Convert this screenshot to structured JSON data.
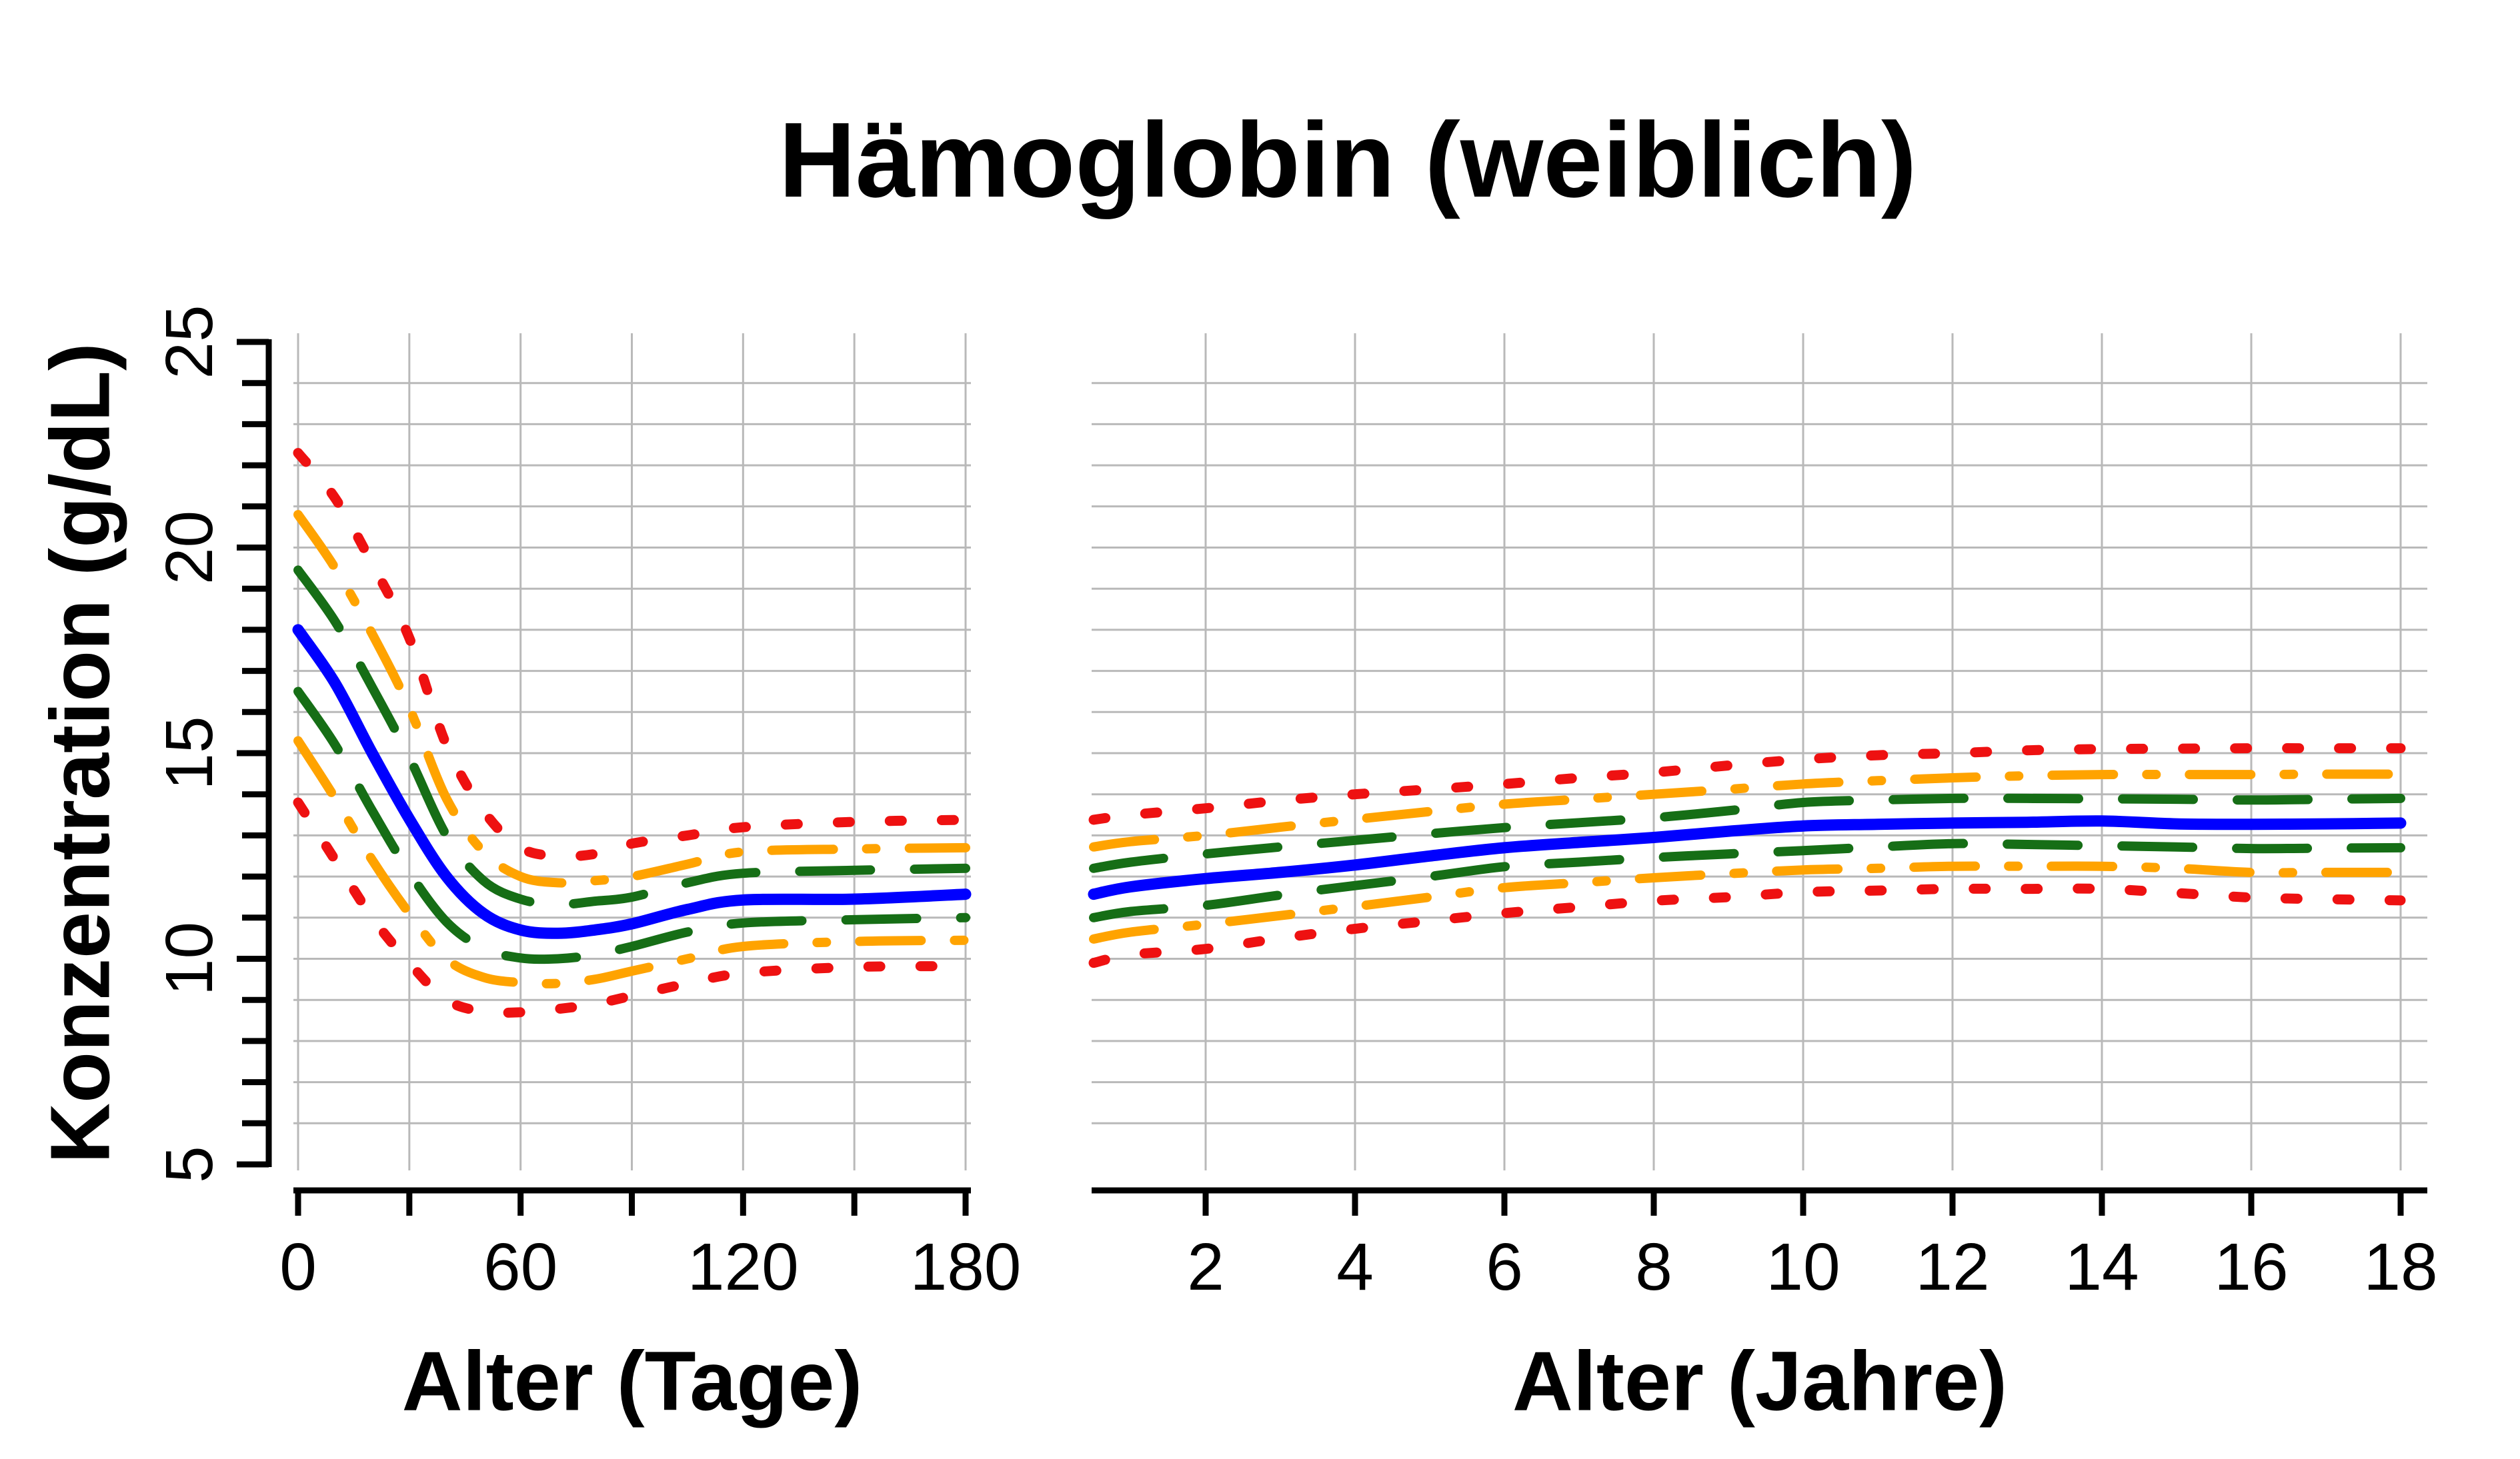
{
  "title": "Hämoglobin (weiblich)",
  "y_axis": {
    "label": "Konzentration (g/dL)",
    "range": [
      5,
      25
    ],
    "minor_tick_step": 1,
    "labeled_ticks": [
      5,
      10,
      15,
      20,
      25
    ],
    "gridlines_every": 1,
    "gridline_range": [
      6,
      24
    ]
  },
  "colors": {
    "median_blue": "#0000ff",
    "quartile_green": "#166e16",
    "decile_orange": "#ffa300",
    "outer_red": "#ee1111",
    "grid": "#b9b9b9",
    "axis": "#000000",
    "background": "#ffffff"
  },
  "chart_data": [
    {
      "type": "line",
      "panel": "infants",
      "xlabel": "Alter (Tage)",
      "xlim": [
        0,
        180
      ],
      "xticks": [
        0,
        30,
        60,
        90,
        120,
        150,
        180
      ],
      "labeled_xticks": [
        0,
        60,
        120,
        180
      ],
      "x": [
        0,
        10,
        20,
        30,
        40,
        50,
        60,
        70,
        80,
        90,
        105,
        120,
        150,
        180
      ],
      "series": [
        {
          "name": "red-dotted-upper",
          "color": "#ee1111",
          "style": "dotted",
          "values": [
            22.3,
            21.2,
            19.6,
            17.8,
            15.2,
            13.6,
            12.7,
            12.5,
            12.55,
            12.8,
            13.0,
            13.2,
            13.33,
            13.38
          ]
        },
        {
          "name": "orange-dash-dot-upper",
          "color": "#ffa300",
          "style": "dashdot",
          "values": [
            20.8,
            19.5,
            17.9,
            16.1,
            13.9,
            12.6,
            12.0,
            11.85,
            11.9,
            12.0,
            12.3,
            12.6,
            12.67,
            12.7
          ]
        },
        {
          "name": "green-dashed-upper",
          "color": "#166e16",
          "style": "dashed",
          "values": [
            19.45,
            18.2,
            16.6,
            14.9,
            13.0,
            11.9,
            11.45,
            11.32,
            11.4,
            11.5,
            11.85,
            12.08,
            12.15,
            12.2
          ]
        },
        {
          "name": "blue-solid-median",
          "color": "#0000ff",
          "style": "solid",
          "values": [
            18.0,
            16.7,
            15.0,
            13.4,
            12.0,
            11.1,
            10.7,
            10.62,
            10.7,
            10.85,
            11.2,
            11.43,
            11.45,
            11.57
          ]
        },
        {
          "name": "green-dashed-lower",
          "color": "#166e16",
          "style": "dashed",
          "values": [
            16.5,
            15.2,
            13.6,
            12.1,
            10.9,
            10.25,
            10.02,
            10.0,
            10.1,
            10.3,
            10.65,
            10.87,
            10.95,
            11.0
          ]
        },
        {
          "name": "orange-dash-dot-lower",
          "color": "#ffa300",
          "style": "dashdot",
          "values": [
            15.3,
            13.9,
            12.4,
            11.1,
            10.0,
            9.55,
            9.42,
            9.4,
            9.5,
            9.7,
            10.0,
            10.3,
            10.42,
            10.45
          ]
        },
        {
          "name": "red-dotted-lower",
          "color": "#ee1111",
          "style": "dotted",
          "values": [
            13.8,
            12.4,
            11.0,
            9.9,
            9.0,
            8.72,
            8.7,
            8.78,
            8.9,
            9.1,
            9.4,
            9.65,
            9.8,
            9.82
          ]
        }
      ]
    },
    {
      "type": "line",
      "panel": "children",
      "xlabel": "Alter (Jahre)",
      "xlim": [
        0.5,
        18
      ],
      "xticks": [
        2,
        4,
        6,
        8,
        10,
        12,
        14,
        16,
        18
      ],
      "labeled_xticks": [
        2,
        4,
        6,
        8,
        10,
        12,
        14,
        16,
        18
      ],
      "x": [
        0.5,
        1,
        2,
        3,
        4,
        5,
        6,
        7,
        8,
        9,
        10,
        11,
        12,
        13,
        14,
        15,
        16,
        17,
        18
      ],
      "series": [
        {
          "name": "red-dotted-upper",
          "color": "#ee1111",
          "style": "dotted",
          "values": [
            13.38,
            13.5,
            13.66,
            13.85,
            14.0,
            14.12,
            14.25,
            14.4,
            14.53,
            14.7,
            14.85,
            14.95,
            15.0,
            15.07,
            15.1,
            15.11,
            15.12,
            15.12,
            15.12
          ]
        },
        {
          "name": "orange-dash-dot-upper",
          "color": "#ffa300",
          "style": "dashdot",
          "values": [
            12.72,
            12.85,
            13.0,
            13.2,
            13.39,
            13.58,
            13.76,
            13.88,
            14.0,
            14.12,
            14.25,
            14.33,
            14.4,
            14.45,
            14.48,
            14.48,
            14.48,
            14.49,
            14.49
          ]
        },
        {
          "name": "green-dashed-upper",
          "color": "#166e16",
          "style": "dashed",
          "values": [
            12.2,
            12.35,
            12.55,
            12.72,
            12.88,
            13.04,
            13.19,
            13.31,
            13.43,
            13.6,
            13.8,
            13.86,
            13.9,
            13.9,
            13.89,
            13.88,
            13.86,
            13.88,
            13.9
          ]
        },
        {
          "name": "blue-solid-median",
          "color": "#0000ff",
          "style": "solid",
          "values": [
            11.57,
            11.75,
            11.95,
            12.1,
            12.28,
            12.5,
            12.7,
            12.83,
            12.95,
            13.1,
            13.23,
            13.27,
            13.3,
            13.32,
            13.35,
            13.28,
            13.27,
            13.28,
            13.3
          ]
        },
        {
          "name": "green-dashed-lower",
          "color": "#166e16",
          "style": "dashed",
          "values": [
            11.0,
            11.15,
            11.3,
            11.55,
            11.78,
            12.0,
            12.24,
            12.35,
            12.46,
            12.55,
            12.63,
            12.72,
            12.8,
            12.78,
            12.75,
            12.72,
            12.68,
            12.69,
            12.7
          ]
        },
        {
          "name": "orange-dash-dot-lower",
          "color": "#ffa300",
          "style": "dashdot",
          "values": [
            10.48,
            10.65,
            10.84,
            11.05,
            11.27,
            11.5,
            11.73,
            11.85,
            11.97,
            12.07,
            12.16,
            12.2,
            12.25,
            12.25,
            12.25,
            12.2,
            12.1,
            12.1,
            12.1
          ]
        },
        {
          "name": "red-dotted-lower",
          "color": "#ee1111",
          "style": "dotted",
          "values": [
            9.9,
            10.1,
            10.24,
            10.5,
            10.73,
            10.92,
            11.11,
            11.26,
            11.41,
            11.5,
            11.62,
            11.66,
            11.7,
            11.7,
            11.7,
            11.6,
            11.49,
            11.45,
            11.42
          ]
        }
      ]
    }
  ]
}
